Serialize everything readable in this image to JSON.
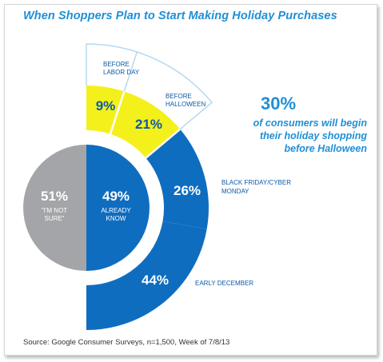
{
  "title": "When Shoppers Plan to Start Making Holiday Purchases",
  "source": "Source: Google Consumer Surveys, n=1,500, Week of 7/8/13",
  "callout": {
    "value": "30%",
    "text": "of consumers will begin their holiday shopping before Halloween",
    "color": "#1f8fd6"
  },
  "chart_data": {
    "type": "pie",
    "title": "When Shoppers Plan to Start Making Holiday Purchases",
    "inner": [
      {
        "value": "51%",
        "label": "\"I'M NOT SURE\"",
        "color": "#a3a5a8"
      },
      {
        "value": "49%",
        "label": "ALREADY KNOW",
        "color": "#0f6dc0"
      }
    ],
    "outer": [
      {
        "value": "9%",
        "label": "BEFORE LABOR DAY",
        "color": "#f4f01c"
      },
      {
        "value": "21%",
        "label": "BEFORE HALLOWEEN",
        "color": "#f4f01c"
      },
      {
        "value": "26%",
        "label": "BLACK FRIDAY/CYBER MONDAY",
        "color": "#0f6dc0"
      },
      {
        "value": "44%",
        "label": "EARLY DECEMBER",
        "color": "#0f6dc0"
      }
    ],
    "outline_color": "#b5d8f2"
  }
}
